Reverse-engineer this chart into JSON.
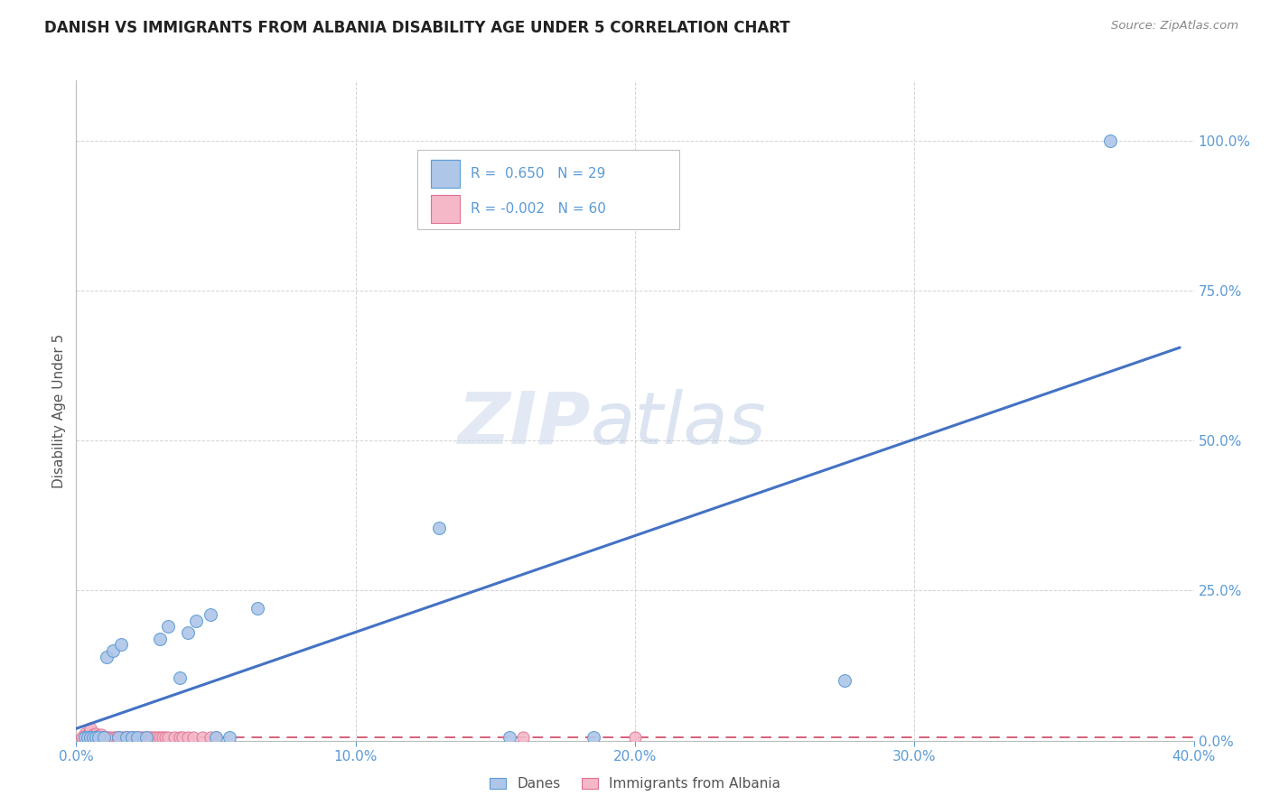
{
  "title": "DANISH VS IMMIGRANTS FROM ALBANIA DISABILITY AGE UNDER 5 CORRELATION CHART",
  "source": "Source: ZipAtlas.com",
  "ylabel": "Disability Age Under 5",
  "xlim": [
    0.0,
    0.4
  ],
  "ylim": [
    0.0,
    1.1
  ],
  "xticks": [
    0.0,
    0.1,
    0.2,
    0.3,
    0.4
  ],
  "yticks": [
    0.0,
    0.25,
    0.5,
    0.75,
    1.0
  ],
  "ytick_labels": [
    "0.0%",
    "25.0%",
    "50.0%",
    "75.0%",
    "100.0%"
  ],
  "xtick_labels": [
    "0.0%",
    "10.0%",
    "20.0%",
    "30.0%",
    "40.0%"
  ],
  "danes_R": 0.65,
  "danes_N": 29,
  "albania_R": -0.002,
  "albania_N": 60,
  "danes_color": "#aec6e8",
  "danes_edge_color": "#5b9bd5",
  "danes_line_color": "#4472c4",
  "albania_color": "#f4b8c8",
  "albania_edge_color": "#e07090",
  "albania_line_color": "#d4607a",
  "danes_trend_x0": 0.0,
  "danes_trend_y0": 0.02,
  "danes_trend_x1": 0.395,
  "danes_trend_y1": 0.655,
  "albania_trend_y": 0.005,
  "danes_x": [
    0.003,
    0.004,
    0.005,
    0.006,
    0.007,
    0.008,
    0.01,
    0.011,
    0.013,
    0.015,
    0.016,
    0.018,
    0.02,
    0.022,
    0.025,
    0.03,
    0.033,
    0.037,
    0.04,
    0.043,
    0.048,
    0.05,
    0.055,
    0.065,
    0.13,
    0.155,
    0.185,
    0.275,
    0.37
  ],
  "danes_y": [
    0.005,
    0.005,
    0.005,
    0.005,
    0.005,
    0.005,
    0.005,
    0.14,
    0.15,
    0.005,
    0.16,
    0.005,
    0.005,
    0.005,
    0.005,
    0.17,
    0.19,
    0.105,
    0.18,
    0.2,
    0.21,
    0.005,
    0.005,
    0.22,
    0.355,
    0.005,
    0.005,
    0.1,
    1.0
  ],
  "albania_x": [
    0.002,
    0.003,
    0.003,
    0.004,
    0.004,
    0.005,
    0.005,
    0.006,
    0.006,
    0.007,
    0.007,
    0.008,
    0.008,
    0.009,
    0.009,
    0.01,
    0.01,
    0.011,
    0.012,
    0.013,
    0.014,
    0.015,
    0.016,
    0.017,
    0.018,
    0.019,
    0.02,
    0.021,
    0.022,
    0.023,
    0.024,
    0.025,
    0.026,
    0.027,
    0.028,
    0.029,
    0.03,
    0.031,
    0.032,
    0.033,
    0.035,
    0.037,
    0.038,
    0.04,
    0.042,
    0.045,
    0.048,
    0.05,
    0.16,
    0.2,
    0.002,
    0.003,
    0.004,
    0.005,
    0.006,
    0.007,
    0.008,
    0.009,
    0.01,
    0.011
  ],
  "albania_y": [
    0.005,
    0.008,
    0.012,
    0.005,
    0.01,
    0.015,
    0.02,
    0.005,
    0.01,
    0.005,
    0.012,
    0.008,
    0.005,
    0.005,
    0.01,
    0.005,
    0.005,
    0.005,
    0.005,
    0.005,
    0.005,
    0.005,
    0.005,
    0.005,
    0.005,
    0.005,
    0.005,
    0.005,
    0.005,
    0.005,
    0.005,
    0.005,
    0.005,
    0.005,
    0.005,
    0.005,
    0.005,
    0.005,
    0.005,
    0.005,
    0.005,
    0.005,
    0.005,
    0.005,
    0.005,
    0.005,
    0.005,
    0.005,
    0.005,
    0.005,
    0.005,
    0.005,
    0.005,
    0.005,
    0.005,
    0.005,
    0.005,
    0.005,
    0.005,
    0.005
  ]
}
